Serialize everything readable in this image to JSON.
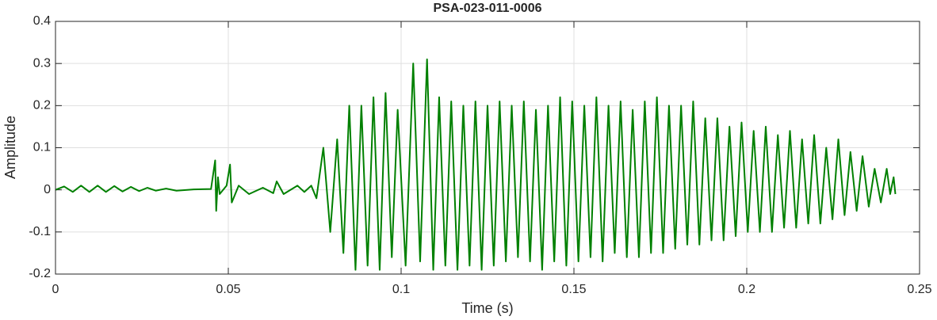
{
  "chart_data": {
    "type": "line",
    "title": "PSA-023-011-0006",
    "x_label": "Time (s)",
    "y_label": "Amplitude",
    "color": "#008000",
    "grid": true,
    "xlim": [
      0,
      0.25
    ],
    "xticks": [
      0,
      0.05,
      0.1,
      0.15,
      0.2,
      0.25
    ],
    "ylim": [
      -0.2,
      0.4
    ],
    "yticks": [
      -0.2,
      -0.1,
      0,
      0.1,
      0.2,
      0.3,
      0.4
    ],
    "x": [
      0,
      0.0025,
      0.005,
      0.0074,
      0.0098,
      0.0122,
      0.0146,
      0.017,
      0.0194,
      0.0218,
      0.0242,
      0.0266,
      0.029,
      0.032,
      0.035,
      0.04,
      0.045,
      0.0462,
      0.0465,
      0.047,
      0.0475,
      0.0495,
      0.0505,
      0.051,
      0.053,
      0.056,
      0.06,
      0.063,
      0.064,
      0.066,
      0.07,
      0.072,
      0.074,
      0.0755,
      0.0775,
      0.0795,
      0.0815,
      0.0833,
      0.085,
      0.0868,
      0.0885,
      0.0903,
      0.092,
      0.0938,
      0.0955,
      0.0973,
      0.099,
      0.1013,
      0.1035,
      0.1055,
      0.1075,
      0.1093,
      0.111,
      0.1128,
      0.1145,
      0.1163,
      0.118,
      0.1198,
      0.1215,
      0.1233,
      0.125,
      0.1268,
      0.1285,
      0.1303,
      0.132,
      0.1338,
      0.1355,
      0.1373,
      0.139,
      0.1408,
      0.1425,
      0.1443,
      0.146,
      0.1478,
      0.1495,
      0.1513,
      0.153,
      0.1548,
      0.1565,
      0.1583,
      0.16,
      0.1618,
      0.1635,
      0.1653,
      0.167,
      0.1688,
      0.1705,
      0.1723,
      0.174,
      0.1758,
      0.1775,
      0.1793,
      0.181,
      0.1828,
      0.1845,
      0.1863,
      0.188,
      0.1898,
      0.1915,
      0.1933,
      0.195,
      0.1968,
      0.1985,
      0.2003,
      0.202,
      0.2038,
      0.2055,
      0.2073,
      0.209,
      0.2108,
      0.2125,
      0.2143,
      0.216,
      0.2178,
      0.2195,
      0.2213,
      0.223,
      0.2248,
      0.2265,
      0.2283,
      0.23,
      0.2318,
      0.2335,
      0.2353,
      0.237,
      0.2388,
      0.2405,
      0.2415,
      0.2425,
      0.243
    ],
    "values": [
      0,
      0.008,
      -0.005,
      0.01,
      -0.005,
      0.01,
      -0.005,
      0.009,
      -0.004,
      0.007,
      -0.003,
      0.005,
      -0.002,
      0.003,
      -0.002,
      0.001,
      0.002,
      0.07,
      -0.05,
      0.03,
      -0.01,
      0.01,
      0.06,
      -0.03,
      0.01,
      -0.01,
      0.005,
      -0.008,
      0.02,
      -0.01,
      0.01,
      -0.005,
      0.01,
      -0.02,
      0.1,
      -0.1,
      0.12,
      -0.15,
      0.2,
      -0.19,
      0.2,
      -0.18,
      0.22,
      -0.19,
      0.23,
      -0.16,
      0.19,
      -0.18,
      0.3,
      -0.17,
      0.31,
      -0.19,
      0.22,
      -0.18,
      0.21,
      -0.19,
      0.2,
      -0.18,
      0.21,
      -0.19,
      0.2,
      -0.18,
      0.21,
      -0.17,
      0.2,
      -0.16,
      0.21,
      -0.17,
      0.19,
      -0.19,
      0.2,
      -0.17,
      0.22,
      -0.18,
      0.21,
      -0.17,
      0.2,
      -0.16,
      0.22,
      -0.17,
      0.2,
      -0.15,
      0.21,
      -0.16,
      0.19,
      -0.16,
      0.21,
      -0.15,
      0.22,
      -0.15,
      0.2,
      -0.14,
      0.2,
      -0.13,
      0.21,
      -0.13,
      0.17,
      -0.12,
      0.17,
      -0.12,
      0.15,
      -0.11,
      0.16,
      -0.1,
      0.14,
      -0.1,
      0.15,
      -0.1,
      0.13,
      -0.09,
      0.14,
      -0.09,
      0.12,
      -0.08,
      0.13,
      -0.08,
      0.1,
      -0.07,
      0.12,
      -0.06,
      0.09,
      -0.05,
      0.08,
      -0.04,
      0.05,
      -0.03,
      0.05,
      -0.01,
      0.03,
      -0.01
    ]
  }
}
